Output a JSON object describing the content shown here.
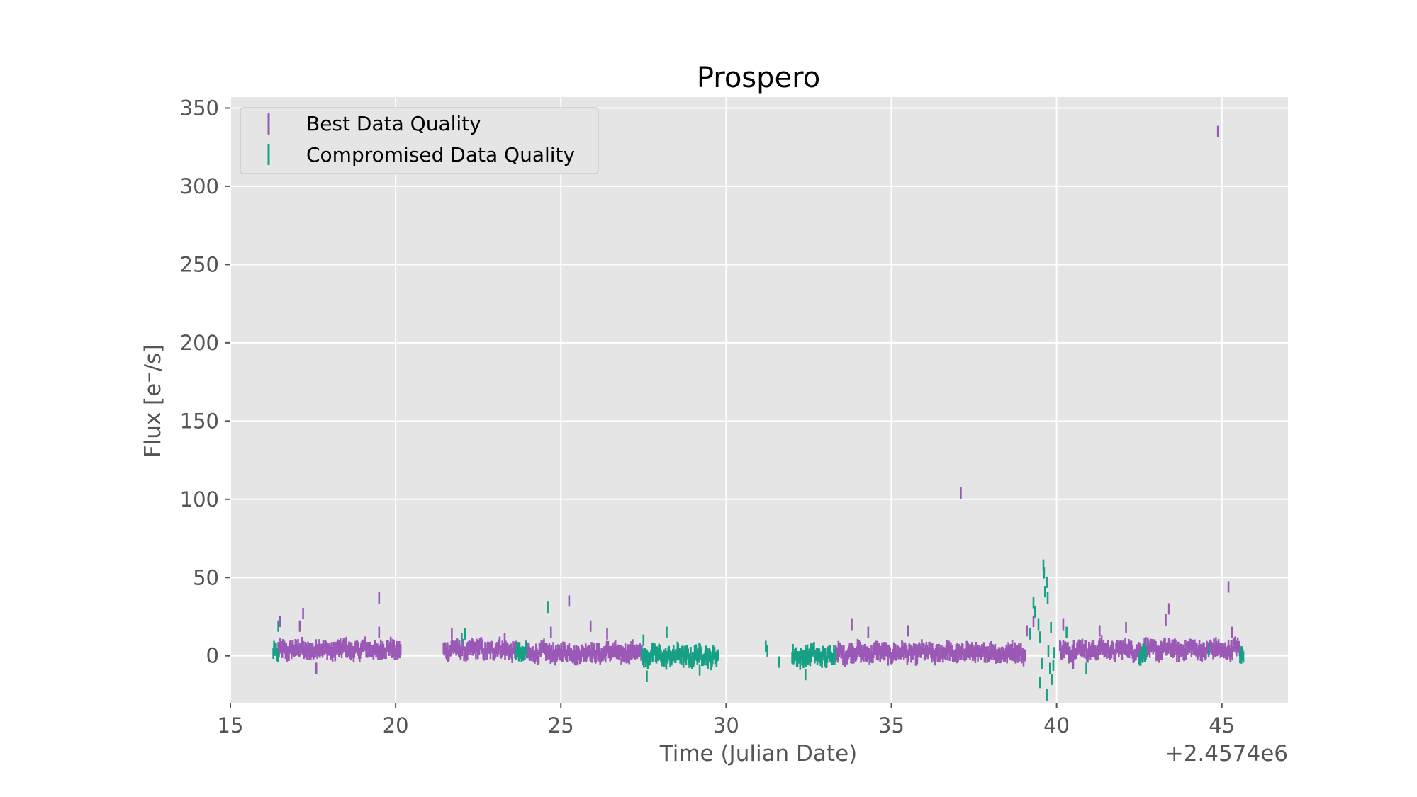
{
  "chart_data": {
    "type": "scatter",
    "title": "Prospero",
    "xlabel": "Time (Julian Date)",
    "ylabel": "Flux [e⁻/s]",
    "x_offset_label": "+2.4574e6",
    "xlim": [
      15,
      47
    ],
    "ylim": [
      -30,
      357
    ],
    "xticks": [
      15,
      20,
      25,
      30,
      35,
      40,
      45
    ],
    "yticks": [
      0,
      50,
      100,
      150,
      200,
      250,
      300,
      350
    ],
    "grid": true,
    "legend_position": "top-left",
    "series": [
      {
        "name": "Best Data Quality",
        "color": "#9b59b6",
        "segments": [
          {
            "start": 16.45,
            "end": 20.15,
            "step": 0.02,
            "base": 4,
            "amp": 3.5
          },
          {
            "start": 21.45,
            "end": 23.65,
            "step": 0.02,
            "base": 4,
            "amp": 3.5
          },
          {
            "start": 23.95,
            "end": 27.45,
            "step": 0.02,
            "base": 2,
            "amp": 3.5
          },
          {
            "start": 33.3,
            "end": 39.05,
            "step": 0.02,
            "base": 2,
            "amp": 3.5
          },
          {
            "start": 40.1,
            "end": 45.55,
            "step": 0.02,
            "base": 4,
            "amp": 3.5
          }
        ],
        "points": [
          {
            "x": 16.5,
            "y": 22
          },
          {
            "x": 17.2,
            "y": 27
          },
          {
            "x": 17.1,
            "y": 19
          },
          {
            "x": 19.5,
            "y": 37
          },
          {
            "x": 19.5,
            "y": 15
          },
          {
            "x": 17.6,
            "y": -8
          },
          {
            "x": 21.7,
            "y": 14
          },
          {
            "x": 23.3,
            "y": 11
          },
          {
            "x": 24.7,
            "y": 15
          },
          {
            "x": 25.25,
            "y": 35
          },
          {
            "x": 25.9,
            "y": 19
          },
          {
            "x": 26.4,
            "y": 14
          },
          {
            "x": 33.8,
            "y": 20
          },
          {
            "x": 34.3,
            "y": 15
          },
          {
            "x": 35.5,
            "y": 16
          },
          {
            "x": 37.1,
            "y": 104
          },
          {
            "x": 39.3,
            "y": 22
          },
          {
            "x": 39.1,
            "y": 16
          },
          {
            "x": 40.2,
            "y": 20
          },
          {
            "x": 41.3,
            "y": 16
          },
          {
            "x": 43.4,
            "y": 30
          },
          {
            "x": 43.3,
            "y": 23
          },
          {
            "x": 44.88,
            "y": 335
          },
          {
            "x": 45.2,
            "y": 44
          },
          {
            "x": 45.3,
            "y": 15
          },
          {
            "x": 40.5,
            "y": -5
          },
          {
            "x": 42.1,
            "y": 18
          }
        ]
      },
      {
        "name": "Compromised Data Quality",
        "color": "#16a085",
        "segments": [
          {
            "start": 16.3,
            "end": 16.45,
            "step": 0.02,
            "base": 2,
            "amp": 3
          },
          {
            "start": 23.65,
            "end": 23.95,
            "step": 0.02,
            "base": 2,
            "amp": 3
          },
          {
            "start": 27.45,
            "end": 29.75,
            "step": 0.02,
            "base": 0,
            "amp": 4
          },
          {
            "start": 32.0,
            "end": 33.3,
            "step": 0.02,
            "base": 0,
            "amp": 4
          },
          {
            "start": 42.5,
            "end": 42.7,
            "step": 0.02,
            "base": 1,
            "amp": 3
          },
          {
            "start": 45.55,
            "end": 45.65,
            "step": 0.02,
            "base": 2,
            "amp": 3
          }
        ],
        "points": [
          {
            "x": 16.45,
            "y": 19
          },
          {
            "x": 22.1,
            "y": 14
          },
          {
            "x": 22.0,
            "y": 11
          },
          {
            "x": 24.6,
            "y": 31
          },
          {
            "x": 27.5,
            "y": 10
          },
          {
            "x": 27.6,
            "y": -13
          },
          {
            "x": 28.2,
            "y": 15
          },
          {
            "x": 29.2,
            "y": -9
          },
          {
            "x": 31.2,
            "y": 6
          },
          {
            "x": 31.25,
            "y": 3
          },
          {
            "x": 31.6,
            "y": -4
          },
          {
            "x": 32.4,
            "y": -12
          },
          {
            "x": 39.2,
            "y": 14
          },
          {
            "x": 39.3,
            "y": 34
          },
          {
            "x": 39.35,
            "y": 28
          },
          {
            "x": 39.45,
            "y": 20
          },
          {
            "x": 39.5,
            "y": 12
          },
          {
            "x": 39.6,
            "y": 58
          },
          {
            "x": 39.62,
            "y": 53
          },
          {
            "x": 39.65,
            "y": 41
          },
          {
            "x": 39.7,
            "y": 47
          },
          {
            "x": 39.73,
            "y": 37
          },
          {
            "x": 39.75,
            "y": 3
          },
          {
            "x": 39.55,
            "y": -5
          },
          {
            "x": 39.5,
            "y": -17
          },
          {
            "x": 39.7,
            "y": -25
          },
          {
            "x": 39.8,
            "y": -8
          },
          {
            "x": 39.83,
            "y": 18
          },
          {
            "x": 39.85,
            "y": -15
          },
          {
            "x": 39.9,
            "y": -6
          },
          {
            "x": 39.93,
            "y": 2
          },
          {
            "x": 40.3,
            "y": 15
          },
          {
            "x": 40.9,
            "y": -8
          },
          {
            "x": 44.6,
            "y": 3
          }
        ]
      }
    ]
  }
}
